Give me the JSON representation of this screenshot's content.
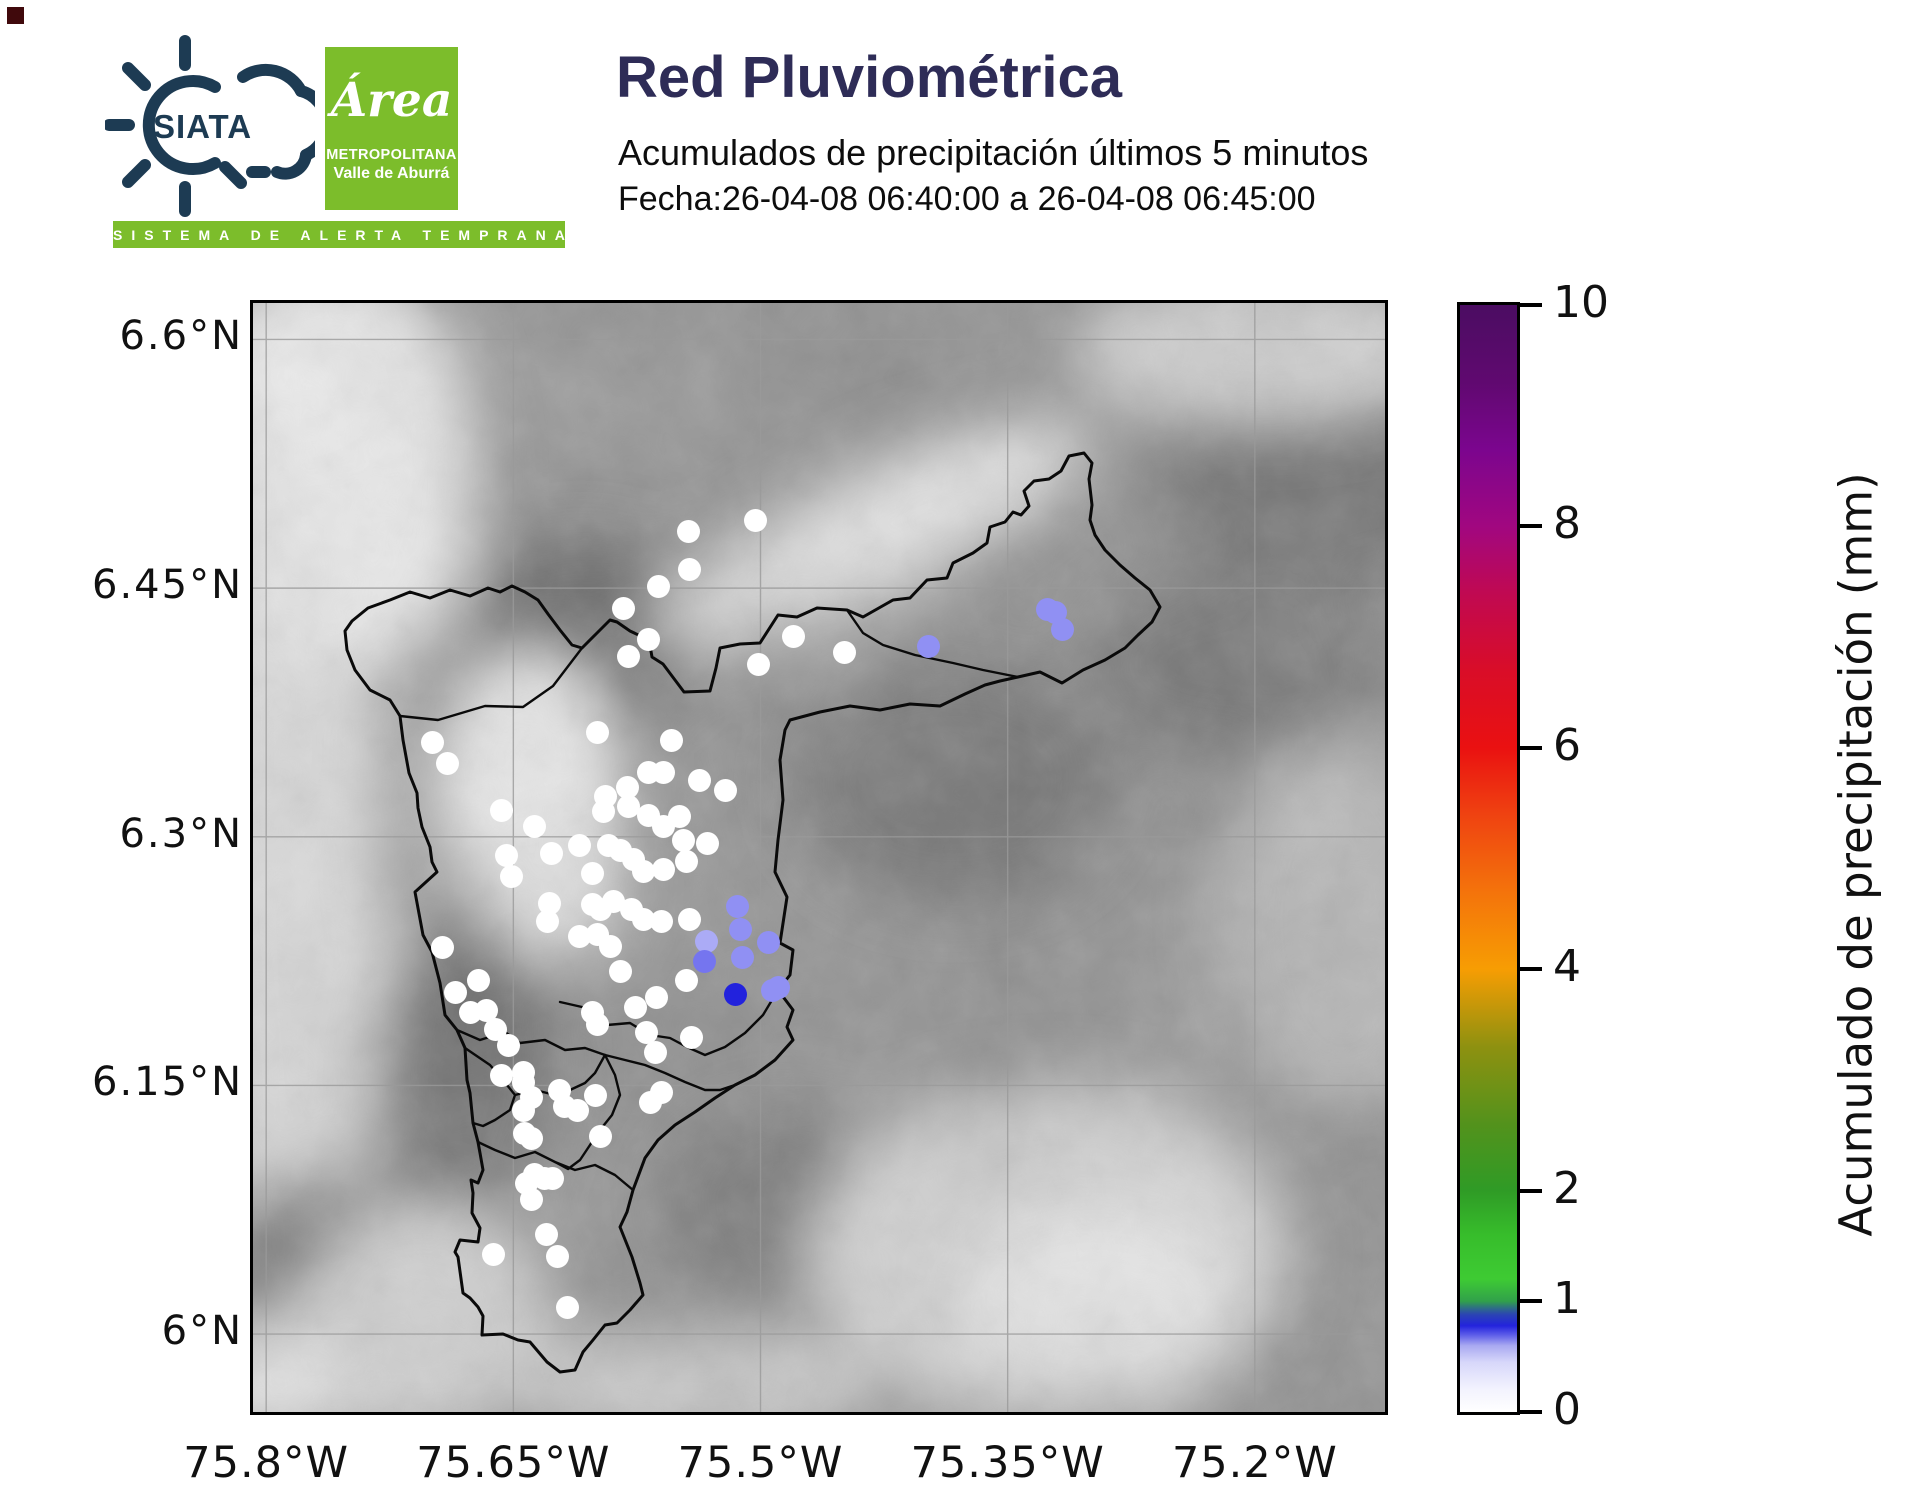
{
  "header": {
    "logo_siata": {
      "text": "SIATA",
      "tagline": "SISTEMA DE ALERTA TEMPRANA"
    },
    "logo_area": {
      "script": "Área",
      "line1": "METROPOLITANA",
      "line2": "Valle de Aburrá"
    },
    "title": "Red Pluviométrica",
    "subtitle": "Acumulados de precipitación últimos 5 minutos",
    "date_line": "Fecha:26-04-08 06:40:00 a 26-04-08 06:45:00"
  },
  "colors": {
    "brand_navy": "#1d3b53",
    "brand_green": "#7cbd2b",
    "title_color": "#2e2c57",
    "dot_white": "#ffffff",
    "dot_blue_light": "#ababf6",
    "dot_blue": "#9090f3",
    "dot_blue_mid": "#7575ef",
    "dot_blue_strong": "#2222dd"
  },
  "chart_data": {
    "type": "scatter",
    "title": "Red Pluviométrica",
    "subtitle": "Acumulados de precipitación últimos 5 minutos",
    "datetime_range": {
      "start": "26-04-08 06:40:00",
      "end": "26-04-08 06:45:00"
    },
    "extent": {
      "west_lon": 75.808,
      "east_lon": 75.121,
      "north_lat": 6.622,
      "south_lat": 5.953
    },
    "grid": true,
    "x_ticks": [
      {
        "label": "75.8°W",
        "lon": 75.8
      },
      {
        "label": "75.65°W",
        "lon": 75.65
      },
      {
        "label": "75.5°W",
        "lon": 75.5
      },
      {
        "label": "75.35°W",
        "lon": 75.35
      },
      {
        "label": "75.2°W",
        "lon": 75.2
      }
    ],
    "y_ticks": [
      {
        "label": "6.6°N",
        "lat": 6.6
      },
      {
        "label": "6.45°N",
        "lat": 6.45
      },
      {
        "label": "6.3°N",
        "lat": 6.3
      },
      {
        "label": "6.15°N",
        "lat": 6.15
      },
      {
        "label": "6°N",
        "lat": 6.0
      }
    ],
    "colorbar": {
      "label": "Acumulado de precipitación (mm)",
      "min": 0,
      "max": 10,
      "ticks": [
        {
          "label": "0",
          "value": 0
        },
        {
          "label": "1",
          "value": 1
        },
        {
          "label": "2",
          "value": 2
        },
        {
          "label": "4",
          "value": 4
        },
        {
          "label": "6",
          "value": 6
        },
        {
          "label": "8",
          "value": 8
        },
        {
          "label": "10",
          "value": 10
        }
      ],
      "gradient_stops": [
        [
          0,
          "#ffffff"
        ],
        [
          0.02,
          "#f3f3fe"
        ],
        [
          0.045,
          "#d7d7fa"
        ],
        [
          0.06,
          "#a9a9f1"
        ],
        [
          0.07,
          "#5a5ae8"
        ],
        [
          0.078,
          "#2323dd"
        ],
        [
          0.088,
          "#2b44b4"
        ],
        [
          0.094,
          "#2e6e85"
        ],
        [
          0.1,
          "#31a04b"
        ],
        [
          0.12,
          "#3ecb33"
        ],
        [
          0.16,
          "#37bd2b"
        ],
        [
          0.2,
          "#2f9b26"
        ],
        [
          0.26,
          "#53921c"
        ],
        [
          0.33,
          "#8e9110"
        ],
        [
          0.4,
          "#f79d03"
        ],
        [
          0.47,
          "#f4730b"
        ],
        [
          0.54,
          "#ef4211"
        ],
        [
          0.6,
          "#ea1111"
        ],
        [
          0.67,
          "#d90d28"
        ],
        [
          0.74,
          "#c00952"
        ],
        [
          0.8,
          "#a10780"
        ],
        [
          0.87,
          "#7b058e"
        ],
        [
          0.93,
          "#600970"
        ],
        [
          1,
          "#4b0d62"
        ]
      ]
    },
    "stations_format": [
      "lon_degW",
      "lat_degN",
      "precip_mm"
    ],
    "stations": [
      [
        75.544,
        6.484,
        0
      ],
      [
        75.503,
        6.491,
        0
      ],
      [
        75.543,
        6.461,
        0
      ],
      [
        75.562,
        6.451,
        0
      ],
      [
        75.583,
        6.438,
        0
      ],
      [
        75.568,
        6.419,
        0
      ],
      [
        75.58,
        6.409,
        0
      ],
      [
        75.48,
        6.421,
        0
      ],
      [
        75.449,
        6.411,
        0
      ],
      [
        75.501,
        6.404,
        0
      ],
      [
        75.699,
        6.357,
        0
      ],
      [
        75.69,
        6.344,
        0
      ],
      [
        75.599,
        6.363,
        0
      ],
      [
        75.554,
        6.358,
        0
      ],
      [
        75.581,
        6.33,
        0
      ],
      [
        75.568,
        6.339,
        0
      ],
      [
        75.559,
        6.339,
        0
      ],
      [
        75.537,
        6.334,
        0
      ],
      [
        75.521,
        6.328,
        0
      ],
      [
        75.594,
        6.324,
        0
      ],
      [
        75.595,
        6.315,
        0
      ],
      [
        75.58,
        6.318,
        0
      ],
      [
        75.657,
        6.316,
        0
      ],
      [
        75.637,
        6.306,
        0
      ],
      [
        75.627,
        6.29,
        0
      ],
      [
        75.61,
        6.295,
        0
      ],
      [
        75.654,
        6.289,
        0
      ],
      [
        75.592,
        6.295,
        0
      ],
      [
        75.585,
        6.292,
        0
      ],
      [
        75.577,
        6.286,
        0
      ],
      [
        75.568,
        6.313,
        0
      ],
      [
        75.559,
        6.306,
        0
      ],
      [
        75.549,
        6.312,
        0
      ],
      [
        75.547,
        6.298,
        0
      ],
      [
        75.559,
        6.28,
        0
      ],
      [
        75.571,
        6.279,
        0
      ],
      [
        75.651,
        6.276,
        0
      ],
      [
        75.602,
        6.278,
        0
      ],
      [
        75.545,
        6.285,
        0
      ],
      [
        75.532,
        6.296,
        0
      ],
      [
        75.628,
        6.26,
        0
      ],
      [
        75.629,
        6.249,
        0
      ],
      [
        75.602,
        6.259,
        0
      ],
      [
        75.597,
        6.256,
        0
      ],
      [
        75.589,
        6.261,
        0
      ],
      [
        75.578,
        6.256,
        0
      ],
      [
        75.571,
        6.25,
        0
      ],
      [
        75.56,
        6.249,
        0
      ],
      [
        75.61,
        6.24,
        0
      ],
      [
        75.599,
        6.241,
        0
      ],
      [
        75.591,
        6.234,
        0
      ],
      [
        75.543,
        6.25,
        0
      ],
      [
        75.585,
        6.219,
        0
      ],
      [
        75.545,
        6.213,
        0
      ],
      [
        75.693,
        6.233,
        0
      ],
      [
        75.671,
        6.213,
        0
      ],
      [
        75.685,
        6.206,
        0
      ],
      [
        75.676,
        6.194,
        0
      ],
      [
        75.666,
        6.195,
        0
      ],
      [
        75.661,
        6.184,
        0
      ],
      [
        75.653,
        6.174,
        0
      ],
      [
        75.576,
        6.197,
        0
      ],
      [
        75.569,
        6.182,
        0
      ],
      [
        75.564,
        6.17,
        0
      ],
      [
        75.542,
        6.179,
        0
      ],
      [
        75.563,
        6.203,
        0
      ],
      [
        75.602,
        6.194,
        0
      ],
      [
        75.599,
        6.187,
        0
      ],
      [
        75.657,
        6.156,
        0
      ],
      [
        75.644,
        6.158,
        0
      ],
      [
        75.644,
        6.152,
        0
      ],
      [
        75.639,
        6.143,
        0
      ],
      [
        75.622,
        6.147,
        0
      ],
      [
        75.619,
        6.137,
        0
      ],
      [
        75.611,
        6.135,
        0
      ],
      [
        75.6,
        6.144,
        0
      ],
      [
        75.644,
        6.135,
        0
      ],
      [
        75.643,
        6.121,
        0
      ],
      [
        75.639,
        6.118,
        0
      ],
      [
        75.597,
        6.119,
        0
      ],
      [
        75.56,
        6.146,
        0
      ],
      [
        75.567,
        6.14,
        0
      ],
      [
        75.637,
        6.096,
        0
      ],
      [
        75.631,
        6.094,
        0
      ],
      [
        75.626,
        6.094,
        0
      ],
      [
        75.639,
        6.081,
        0
      ],
      [
        75.63,
        6.06,
        0
      ],
      [
        75.623,
        6.047,
        0
      ],
      [
        75.662,
        6.048,
        0
      ],
      [
        75.617,
        6.016,
        0
      ],
      [
        75.642,
        6.091,
        0
      ],
      [
        75.326,
        6.437,
        0.4
      ],
      [
        75.321,
        6.435,
        0.4
      ],
      [
        75.317,
        6.425,
        0.4
      ],
      [
        75.398,
        6.415,
        0.4
      ],
      [
        75.514,
        6.258,
        0.4
      ],
      [
        75.512,
        6.244,
        0.4
      ],
      [
        75.533,
        6.237,
        0.3
      ],
      [
        75.495,
        6.236,
        0.4
      ],
      [
        75.511,
        6.227,
        0.4
      ],
      [
        75.534,
        6.225,
        0.5
      ],
      [
        75.493,
        6.207,
        0.4
      ],
      [
        75.489,
        6.209,
        0.4
      ],
      [
        75.515,
        6.205,
        0.8
      ]
    ]
  }
}
